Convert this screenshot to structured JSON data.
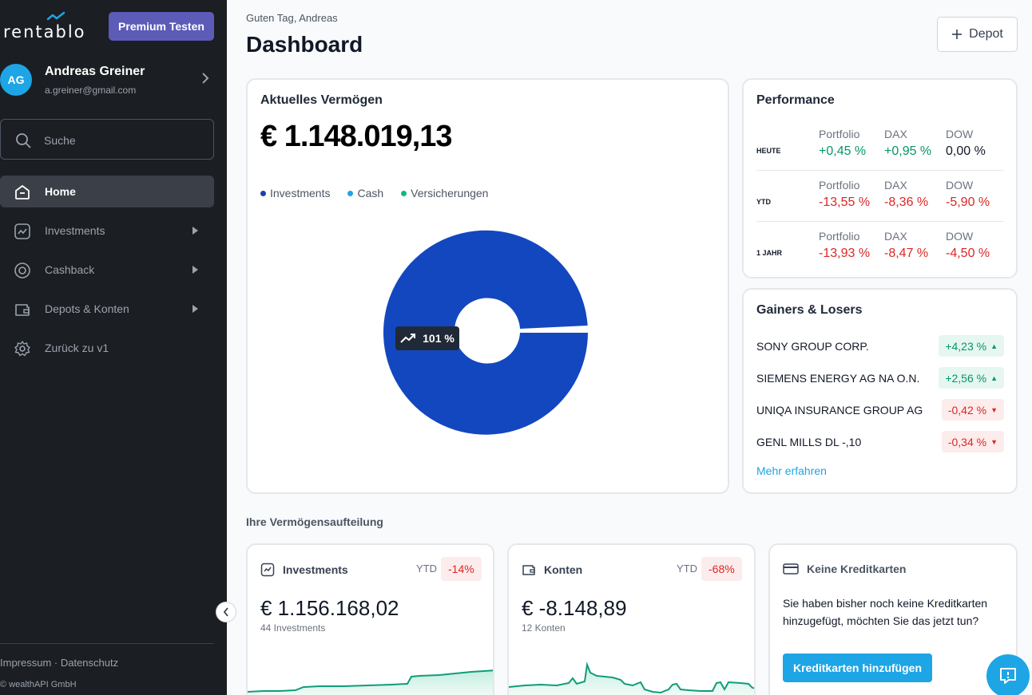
{
  "app": {
    "logo_text": "rentablo",
    "premium_label": "Premium Testen"
  },
  "user": {
    "initials": "AG",
    "name": "Andreas Greiner",
    "email": "a.greiner@gmail.com"
  },
  "search": {
    "placeholder": "Suche"
  },
  "nav": [
    {
      "label": "Home",
      "icon": "home-icon",
      "active": true
    },
    {
      "label": "Investments",
      "icon": "chart-line-icon"
    },
    {
      "label": "Cashback",
      "icon": "target-icon"
    },
    {
      "label": "Depots & Konten",
      "icon": "wallet-icon"
    },
    {
      "label": "Zurück zu v1",
      "icon": "gear-icon"
    }
  ],
  "footer": {
    "links": "Impressum  ·  Datenschutz",
    "copyright": "© wealthAPI GmbH"
  },
  "header": {
    "greeting": "Guten Tag, Andreas",
    "title": "Dashboard",
    "depot_button": "Depot"
  },
  "vermoegen": {
    "title": "Aktuelles Vermögen",
    "value": "€ 1.148.019,13",
    "legend": [
      {
        "label": "Investments",
        "color": "#1e40af"
      },
      {
        "label": "Cash",
        "color": "#1da5e5"
      },
      {
        "label": "Versicherungen",
        "color": "#10b981"
      }
    ],
    "tooltip": "101 %",
    "donut_color": "#1347c0"
  },
  "performance": {
    "title": "Performance",
    "rows": [
      {
        "label": "HEUTE",
        "cols": [
          {
            "h": "Portfolio",
            "v": "+0,45 %",
            "s": "pos"
          },
          {
            "h": "DAX",
            "v": "+0,95 %",
            "s": "pos"
          },
          {
            "h": "DOW",
            "v": "0,00 %",
            "s": "neu"
          }
        ]
      },
      {
        "label": "YTD",
        "cols": [
          {
            "h": "Portfolio",
            "v": "-13,55 %",
            "s": "neg"
          },
          {
            "h": "DAX",
            "v": "-8,36 %",
            "s": "neg"
          },
          {
            "h": "DOW",
            "v": "-5,90 %",
            "s": "neg"
          }
        ]
      },
      {
        "label": "1 JAHR",
        "cols": [
          {
            "h": "Portfolio",
            "v": "-13,93 %",
            "s": "neg"
          },
          {
            "h": "DAX",
            "v": "-8,47 %",
            "s": "neg"
          },
          {
            "h": "DOW",
            "v": "-4,50 %",
            "s": "neg"
          }
        ]
      }
    ]
  },
  "gainers": {
    "title": "Gainers & Losers",
    "items": [
      {
        "name": "SONY GROUP CORP.",
        "change": "+4,23 %",
        "dir": "up"
      },
      {
        "name": "SIEMENS ENERGY AG NA O.N.",
        "change": "+2,56 %",
        "dir": "up"
      },
      {
        "name": "UNIQA INSURANCE GROUP AG",
        "change": "-0,42 %",
        "dir": "down"
      },
      {
        "name": "GENL MILLS DL -,10",
        "change": "-0,34 %",
        "dir": "down"
      }
    ],
    "more_link": "Mehr erfahren"
  },
  "aufteilung": {
    "title": "Ihre Vermögensaufteilung",
    "investments": {
      "title": "Investments",
      "ytd_label": "YTD",
      "ytd_value": "-14%",
      "value": "€ 1.156.168,02",
      "sub": "44 Investments"
    },
    "konten": {
      "title": "Konten",
      "ytd_label": "YTD",
      "ytd_value": "-68%",
      "value": "€ -8.148,89",
      "sub": "12 Konten"
    },
    "kreditkarten": {
      "title": "Keine Kreditkarten",
      "text": "Sie haben bisher noch keine Kreditkarten hinzugefügt, möchten Sie das jetzt tun?",
      "button": "Kreditkarten hinzufügen"
    }
  },
  "colors": {
    "sidebar": "#1b1e22",
    "accent": "#1da5e5",
    "premium": "#5c5bb8",
    "positive": "#059669",
    "negative": "#dc2626"
  }
}
